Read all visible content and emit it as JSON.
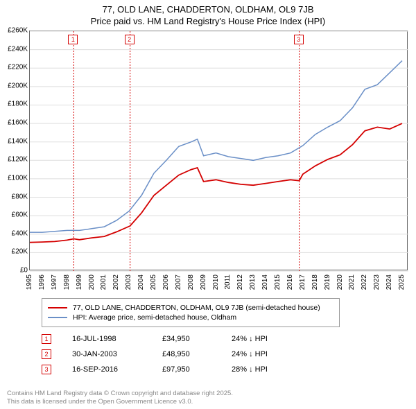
{
  "title": {
    "line1": "77, OLD LANE, CHADDERTON, OLDHAM, OL9 7JB",
    "line2": "Price paid vs. HM Land Registry's House Price Index (HPI)"
  },
  "chart": {
    "type": "line",
    "background_color": "#ffffff",
    "border_color": "#666666",
    "y_axis": {
      "min": 0,
      "max": 260000,
      "tick_step": 20000,
      "ticks": [
        "£0",
        "£20K",
        "£40K",
        "£60K",
        "£80K",
        "£100K",
        "£120K",
        "£140K",
        "£160K",
        "£180K",
        "£200K",
        "£220K",
        "£240K",
        "£260K"
      ],
      "grid_color": "#dddddd",
      "label_fontsize": 10
    },
    "x_axis": {
      "min": 1995,
      "max": 2025.5,
      "ticks": [
        1995,
        1996,
        1997,
        1998,
        1999,
        2000,
        2001,
        2002,
        2003,
        2004,
        2005,
        2006,
        2007,
        2008,
        2009,
        2010,
        2011,
        2012,
        2013,
        2014,
        2015,
        2016,
        2017,
        2018,
        2019,
        2020,
        2021,
        2022,
        2023,
        2024,
        2025
      ],
      "label_fontsize": 10
    },
    "series": [
      {
        "name": "77, OLD LANE, CHADDERTON, OLDHAM, OL9 7JB (semi-detached house)",
        "color": "#d40000",
        "line_width": 1.8,
        "points": [
          [
            1995,
            31000
          ],
          [
            1996,
            31500
          ],
          [
            1997,
            32000
          ],
          [
            1998,
            33500
          ],
          [
            1998.54,
            34950
          ],
          [
            1999,
            34000
          ],
          [
            2000,
            36000
          ],
          [
            2001,
            37500
          ],
          [
            2002,
            42500
          ],
          [
            2003.08,
            48950
          ],
          [
            2004,
            63000
          ],
          [
            2005,
            82000
          ],
          [
            2006,
            93000
          ],
          [
            2007,
            104000
          ],
          [
            2008,
            110000
          ],
          [
            2008.5,
            112000
          ],
          [
            2009,
            97000
          ],
          [
            2010,
            99000
          ],
          [
            2011,
            96000
          ],
          [
            2012,
            94000
          ],
          [
            2013,
            93000
          ],
          [
            2014,
            95000
          ],
          [
            2015,
            97000
          ],
          [
            2016,
            99000
          ],
          [
            2016.71,
            97950
          ],
          [
            2017,
            105000
          ],
          [
            2018,
            114000
          ],
          [
            2019,
            121000
          ],
          [
            2020,
            126000
          ],
          [
            2021,
            137000
          ],
          [
            2022,
            152000
          ],
          [
            2023,
            156000
          ],
          [
            2024,
            154000
          ],
          [
            2025,
            160000
          ]
        ]
      },
      {
        "name": "HPI: Average price, semi-detached house, Oldham",
        "color": "#6a8fc7",
        "line_width": 1.5,
        "points": [
          [
            1995,
            42000
          ],
          [
            1996,
            42000
          ],
          [
            1997,
            43000
          ],
          [
            1998,
            44000
          ],
          [
            1999,
            44000
          ],
          [
            2000,
            46000
          ],
          [
            2001,
            48000
          ],
          [
            2002,
            55000
          ],
          [
            2003,
            65000
          ],
          [
            2004,
            82000
          ],
          [
            2005,
            106000
          ],
          [
            2006,
            120000
          ],
          [
            2007,
            135000
          ],
          [
            2008,
            140000
          ],
          [
            2008.5,
            143000
          ],
          [
            2009,
            125000
          ],
          [
            2010,
            128000
          ],
          [
            2011,
            124000
          ],
          [
            2012,
            122000
          ],
          [
            2013,
            120000
          ],
          [
            2014,
            123000
          ],
          [
            2015,
            125000
          ],
          [
            2016,
            128000
          ],
          [
            2017,
            136000
          ],
          [
            2018,
            148000
          ],
          [
            2019,
            156000
          ],
          [
            2020,
            163000
          ],
          [
            2021,
            177000
          ],
          [
            2022,
            197000
          ],
          [
            2023,
            202000
          ],
          [
            2024,
            215000
          ],
          [
            2025,
            228000
          ]
        ]
      }
    ],
    "events": [
      {
        "num": "1",
        "x": 1998.54,
        "color": "#d40000"
      },
      {
        "num": "2",
        "x": 2003.08,
        "color": "#d40000"
      },
      {
        "num": "3",
        "x": 2016.71,
        "color": "#d40000"
      }
    ]
  },
  "legend": {
    "items": [
      {
        "color": "#d40000",
        "label": "77, OLD LANE, CHADDERTON, OLDHAM, OL9 7JB (semi-detached house)"
      },
      {
        "color": "#6a8fc7",
        "label": "HPI: Average price, semi-detached house, Oldham"
      }
    ]
  },
  "transactions": [
    {
      "num": "1",
      "color": "#d40000",
      "date": "16-JUL-1998",
      "price": "£34,950",
      "diff": "24% ↓ HPI"
    },
    {
      "num": "2",
      "color": "#d40000",
      "date": "30-JAN-2003",
      "price": "£48,950",
      "diff": "24% ↓ HPI"
    },
    {
      "num": "3",
      "color": "#d40000",
      "date": "16-SEP-2016",
      "price": "£97,950",
      "diff": "28% ↓ HPI"
    }
  ],
  "footer": {
    "line1": "Contains HM Land Registry data © Crown copyright and database right 2025.",
    "line2": "This data is licensed under the Open Government Licence v3.0."
  }
}
